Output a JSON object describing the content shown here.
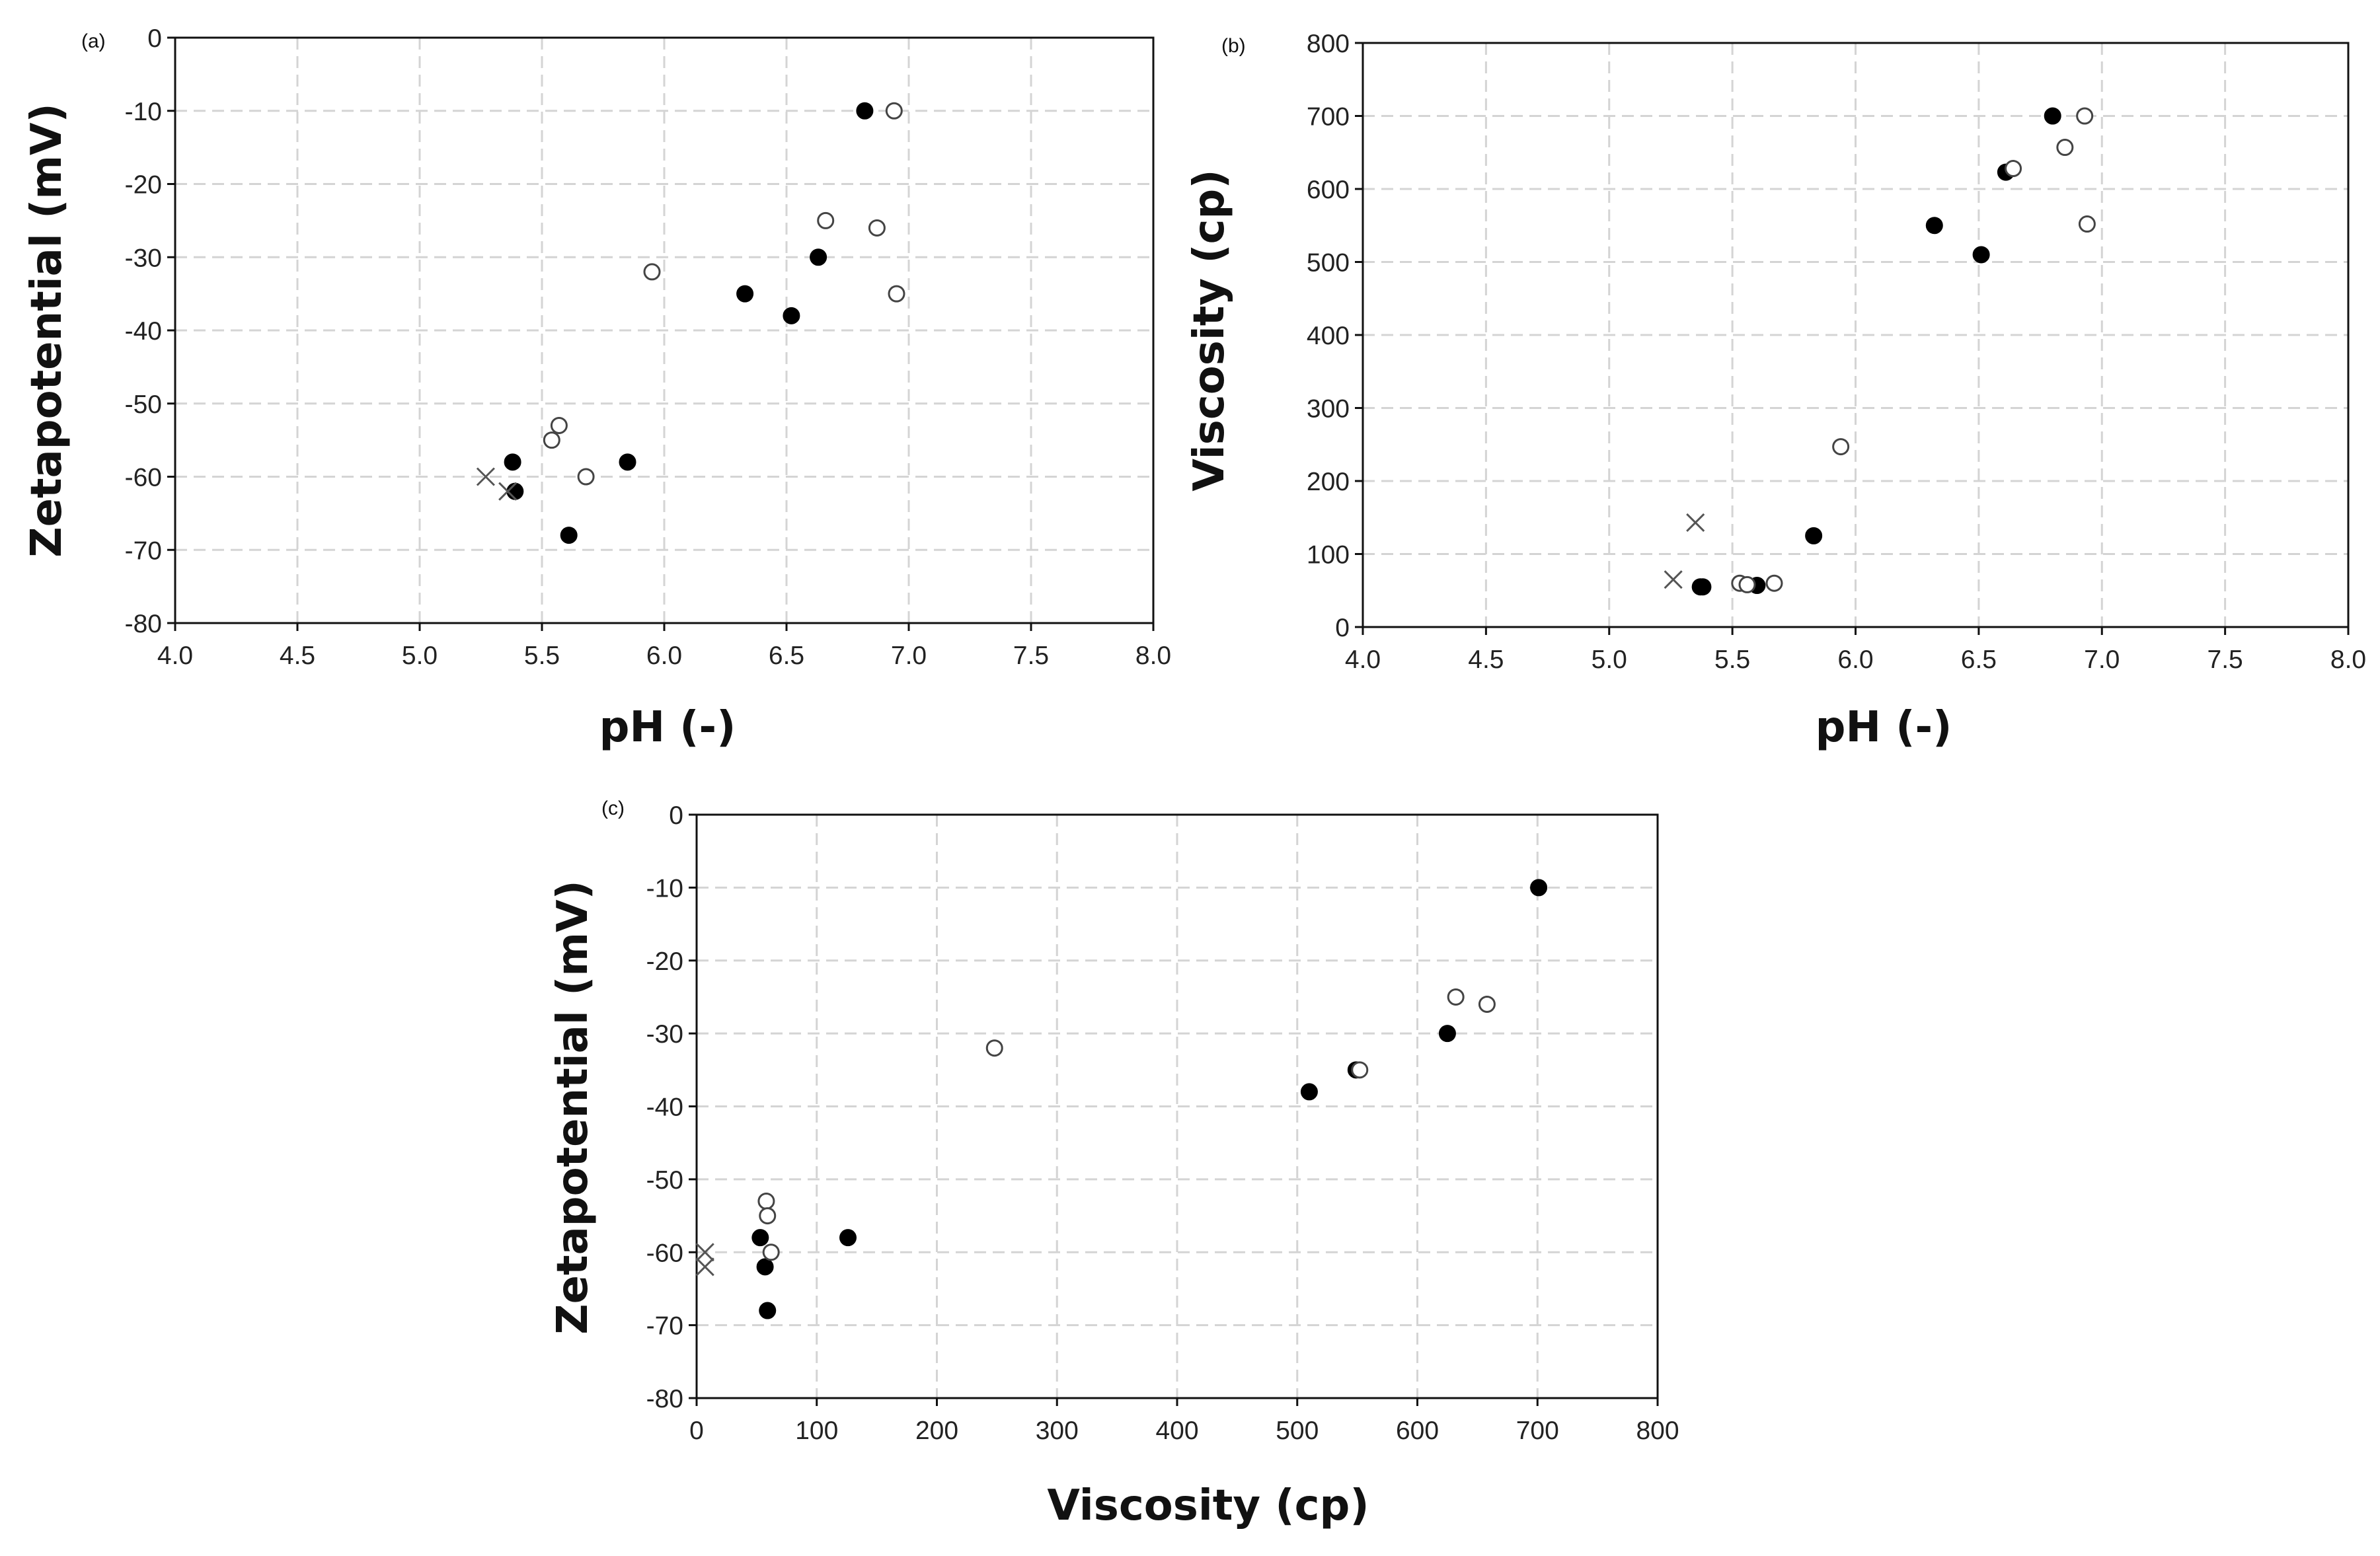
{
  "chart_data": [
    {
      "id": "a",
      "type": "scatter",
      "panel_label": "(a)",
      "xlabel": "pH (-)",
      "ylabel": "Zetapotential (mV)",
      "xlim": [
        4.0,
        8.0
      ],
      "ylim": [
        -80,
        0
      ],
      "xticks": [
        "4.0",
        "4.5",
        "5.0",
        "5.5",
        "6.0",
        "6.5",
        "7.0",
        "7.5",
        "8.0"
      ],
      "yticks": [
        "0",
        "-10",
        "-20",
        "-30",
        "-40",
        "-50",
        "-60",
        "-70",
        "-80"
      ],
      "grid": true,
      "series": [
        {
          "name": "filled",
          "marker": "filled-circle",
          "points": [
            [
              6.82,
              -10
            ],
            [
              6.63,
              -30
            ],
            [
              6.33,
              -35
            ],
            [
              6.52,
              -38
            ],
            [
              5.85,
              -58
            ],
            [
              5.38,
              -58
            ],
            [
              5.39,
              -62
            ],
            [
              5.61,
              -68
            ]
          ]
        },
        {
          "name": "open",
          "marker": "open-circle",
          "points": [
            [
              6.94,
              -10
            ],
            [
              6.66,
              -25
            ],
            [
              6.87,
              -26
            ],
            [
              6.95,
              -35
            ],
            [
              5.95,
              -32
            ],
            [
              5.57,
              -53
            ],
            [
              5.54,
              -55
            ],
            [
              5.68,
              -60
            ]
          ]
        },
        {
          "name": "cross",
          "marker": "cross",
          "points": [
            [
              5.27,
              -60
            ],
            [
              5.36,
              -62
            ]
          ]
        }
      ]
    },
    {
      "id": "b",
      "type": "scatter",
      "panel_label": "(b)",
      "xlabel": "pH (-)",
      "ylabel": "Viscosity (cp)",
      "xlim": [
        4.0,
        8.0
      ],
      "ylim": [
        0,
        800
      ],
      "xticks": [
        "4.0",
        "4.5",
        "5.0",
        "5.5",
        "6.0",
        "6.5",
        "7.0",
        "7.5",
        "8.0"
      ],
      "yticks": [
        "800",
        "700",
        "600",
        "500",
        "400",
        "300",
        "200",
        "100",
        "0"
      ],
      "grid": true,
      "series": [
        {
          "name": "filled",
          "marker": "filled-circle",
          "points": [
            [
              6.8,
              700
            ],
            [
              6.61,
              623
            ],
            [
              6.32,
              550
            ],
            [
              6.51,
              510
            ],
            [
              5.83,
              125
            ],
            [
              5.37,
              55
            ],
            [
              5.38,
              55
            ],
            [
              5.6,
              57
            ]
          ]
        },
        {
          "name": "open",
          "marker": "open-circle",
          "points": [
            [
              6.93,
              700
            ],
            [
              6.85,
              657
            ],
            [
              6.64,
              628
            ],
            [
              6.94,
              552
            ],
            [
              5.94,
              247
            ],
            [
              5.53,
              60
            ],
            [
              5.56,
              58
            ],
            [
              5.67,
              60
            ]
          ]
        },
        {
          "name": "cross",
          "marker": "cross",
          "points": [
            [
              5.35,
              143
            ],
            [
              5.26,
              65
            ]
          ]
        }
      ]
    },
    {
      "id": "c",
      "type": "scatter",
      "panel_label": "(c)",
      "xlabel": "Viscosity (cp)",
      "ylabel": "Zetapotential (mV)",
      "xlim": [
        0,
        800
      ],
      "ylim": [
        -80,
        0
      ],
      "xticks": [
        "0",
        "100",
        "200",
        "300",
        "400",
        "500",
        "600",
        "700",
        "800"
      ],
      "yticks": [
        "0",
        "-10",
        "-20",
        "-30",
        "-40",
        "-50",
        "-60",
        "-70",
        "-80"
      ],
      "grid": true,
      "series": [
        {
          "name": "filled",
          "marker": "filled-circle",
          "points": [
            [
              701,
              -10
            ],
            [
              625,
              -30
            ],
            [
              549,
              -35
            ],
            [
              510,
              -38
            ],
            [
              126,
              -58
            ],
            [
              53,
              -58
            ],
            [
              57,
              -62
            ],
            [
              59,
              -68
            ]
          ]
        },
        {
          "name": "open",
          "marker": "open-circle",
          "points": [
            [
              632,
              -25
            ],
            [
              658,
              -26
            ],
            [
              552,
              -35
            ],
            [
              248,
              -32
            ],
            [
              58,
              -53
            ],
            [
              59,
              -55
            ],
            [
              62,
              -60
            ]
          ]
        },
        {
          "name": "cross",
          "marker": "cross",
          "points": [
            [
              7,
              -60
            ],
            [
              7,
              -62
            ]
          ]
        }
      ]
    }
  ]
}
